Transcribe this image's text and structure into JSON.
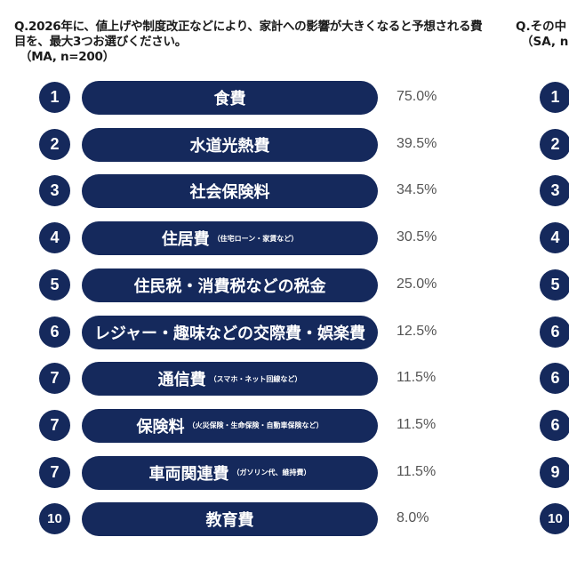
{
  "left_panel": {
    "question": "Q.2026年に、値上げや制度改正などにより、家計への影響が大きくなると予想される費目を、最大3つお選びください。",
    "sample": "（MA, n=200）"
  },
  "right_panel": {
    "question": "Q.その中",
    "sample": "（SA, n",
    "ranks": [
      "1",
      "2",
      "3",
      "4",
      "5",
      "6",
      "6",
      "6",
      "9",
      "10"
    ]
  },
  "colors": {
    "bar": "#15295c",
    "percent_text": "#555555"
  },
  "chart_data": {
    "type": "table",
    "rows": [
      {
        "rank": "1",
        "label": "食費",
        "note": "",
        "value": 75.0,
        "display": "75.0%"
      },
      {
        "rank": "2",
        "label": "水道光熱費",
        "note": "",
        "value": 39.5,
        "display": "39.5%"
      },
      {
        "rank": "3",
        "label": "社会保険料",
        "note": "",
        "value": 34.5,
        "display": "34.5%"
      },
      {
        "rank": "4",
        "label": "住居費",
        "note": "（住宅ローン・家賃など）",
        "value": 30.5,
        "display": "30.5%"
      },
      {
        "rank": "5",
        "label": "住民税・消費税などの税金",
        "note": "",
        "value": 25.0,
        "display": "25.0%"
      },
      {
        "rank": "6",
        "label": "レジャー・趣味などの交際費・娯楽費",
        "note": "",
        "value": 12.5,
        "display": "12.5%"
      },
      {
        "rank": "7",
        "label": "通信費",
        "note": "（スマホ・ネット回線など）",
        "value": 11.5,
        "display": "11.5%"
      },
      {
        "rank": "7",
        "label": "保険料",
        "note": "（火災保険・生命保険・自動車保険など）",
        "value": 11.5,
        "display": "11.5%"
      },
      {
        "rank": "7",
        "label": "車両関連費",
        "note": "（ガソリン代、維持費）",
        "value": 11.5,
        "display": "11.5%"
      },
      {
        "rank": "10",
        "label": "教育費",
        "note": "",
        "value": 8.0,
        "display": "8.0%"
      }
    ]
  }
}
